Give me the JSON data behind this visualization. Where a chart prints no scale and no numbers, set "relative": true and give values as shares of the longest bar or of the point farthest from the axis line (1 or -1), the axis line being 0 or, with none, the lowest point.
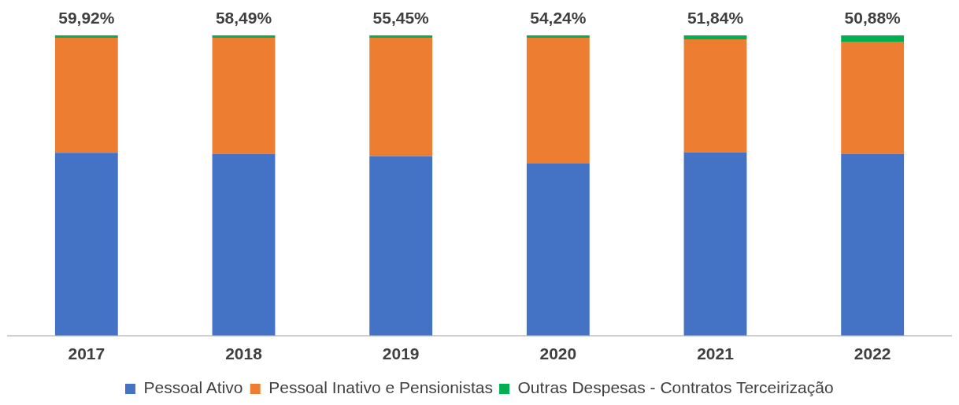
{
  "chart_data": {
    "type": "bar",
    "stacked": true,
    "relative": true,
    "categories": [
      "2017",
      "2018",
      "2019",
      "2020",
      "2021",
      "2022"
    ],
    "series": [
      {
        "name": "Pessoal Ativo",
        "color": "#4472c4",
        "values": [
          0.609,
          0.606,
          0.598,
          0.573,
          0.611,
          0.606
        ]
      },
      {
        "name": "Pessoal Inativo e Pensionistas",
        "color": "#ed7d31",
        "values": [
          0.383,
          0.386,
          0.394,
          0.419,
          0.376,
          0.373
        ]
      },
      {
        "name": "Outras Despesas - Contratos Terceirização",
        "color": "#00b050",
        "values": [
          0.008,
          0.008,
          0.008,
          0.008,
          0.013,
          0.021
        ]
      }
    ],
    "annotations": [
      {
        "text": "59,92%",
        "x": "2017",
        "y": 1
      },
      {
        "text": "58,49%",
        "x": "2018",
        "y": 1
      },
      {
        "text": "55,45%",
        "x": "2019",
        "y": 1
      },
      {
        "text": "54,24%",
        "x": "2020",
        "y": 1
      },
      {
        "text": "51,84%",
        "x": "2021",
        "y": 1
      },
      {
        "text": "50,88%",
        "x": "2022",
        "y": 1
      }
    ],
    "grid": false,
    "legend": "bottom"
  }
}
